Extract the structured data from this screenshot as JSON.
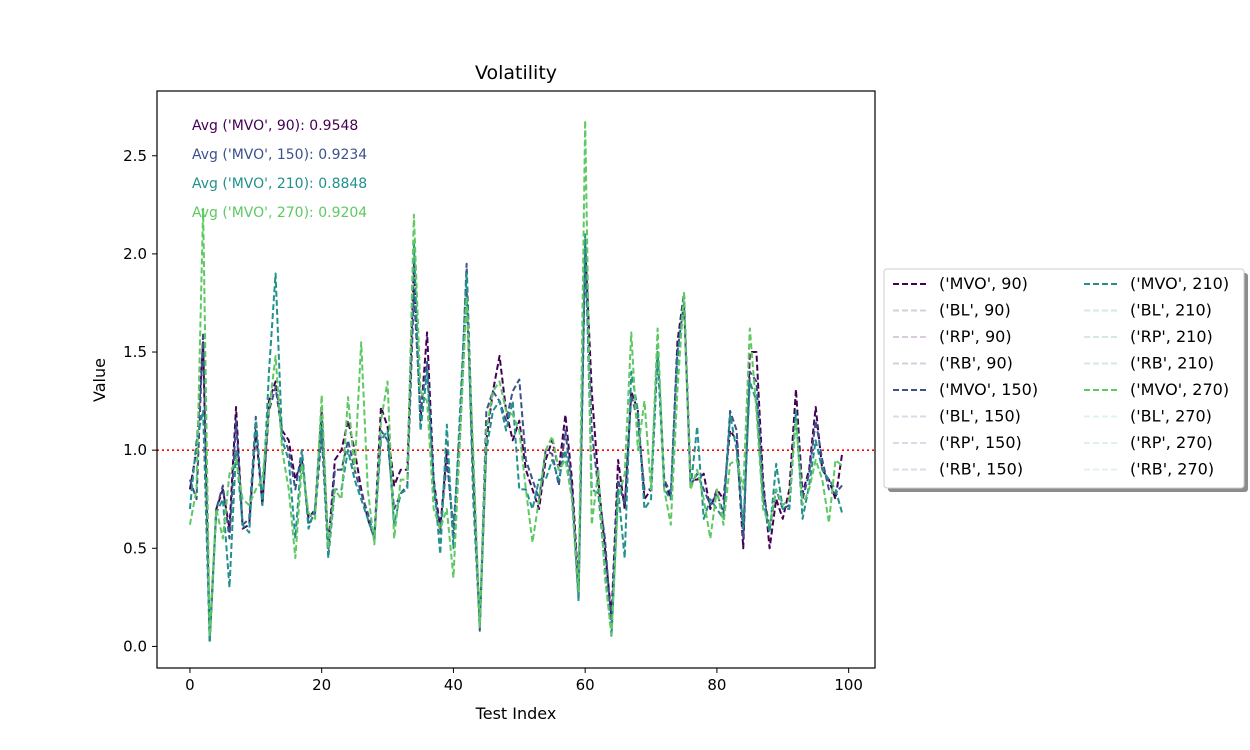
{
  "chart_data": {
    "type": "line",
    "title": "Volatility",
    "xlabel": "Test Index",
    "ylabel": "Value",
    "xlim": [
      -5,
      104
    ],
    "ylim": [
      -0.11,
      2.83
    ],
    "xticks": [
      0,
      20,
      40,
      60,
      80,
      100
    ],
    "yticks": [
      0.0,
      0.5,
      1.0,
      1.5,
      2.0,
      2.5
    ],
    "grid": false,
    "reference_line": {
      "y": 1.0,
      "color": "#ff0000",
      "style": "dotted"
    },
    "annotations": [
      {
        "text": "Avg ('MVO', 90): 0.9548",
        "color": "#440154"
      },
      {
        "text": "Avg ('MVO', 150): 0.9234",
        "color": "#3b528b"
      },
      {
        "text": "Avg ('MVO', 210): 0.8848",
        "color": "#21918c"
      },
      {
        "text": "Avg ('MVO', 270): 0.9204",
        "color": "#5ec962"
      }
    ],
    "legend": {
      "placement": "right, outside the plot",
      "columns": 2,
      "entries": [
        {
          "label": "('MVO', 90)",
          "color": "#440154",
          "faded": false
        },
        {
          "label": "('BL', 90)",
          "color": "#440154",
          "faded": true
        },
        {
          "label": "('RP', 90)",
          "color": "#440154",
          "faded": true
        },
        {
          "label": "('RB', 90)",
          "color": "#440154",
          "faded": true
        },
        {
          "label": "('MVO', 150)",
          "color": "#3b528b",
          "faded": false
        },
        {
          "label": "('BL', 150)",
          "color": "#3b528b",
          "faded": true
        },
        {
          "label": "('RP', 150)",
          "color": "#3b528b",
          "faded": true
        },
        {
          "label": "('RB', 150)",
          "color": "#3b528b",
          "faded": true
        },
        {
          "label": "('MVO', 210)",
          "color": "#21918c",
          "faded": false
        },
        {
          "label": "('BL', 210)",
          "color": "#21918c",
          "faded": true
        },
        {
          "label": "('RP', 210)",
          "color": "#21918c",
          "faded": true
        },
        {
          "label": "('RB', 210)",
          "color": "#21918c",
          "faded": true
        },
        {
          "label": "('MVO', 270)",
          "color": "#5ec962",
          "faded": false
        },
        {
          "label": "('BL', 270)",
          "color": "#5ec962",
          "faded": true
        },
        {
          "label": "('RP', 270)",
          "color": "#5ec962",
          "faded": true
        },
        {
          "label": "('RB', 270)",
          "color": "#5ec962",
          "faded": true
        }
      ]
    },
    "x": [
      0,
      1,
      2,
      3,
      4,
      5,
      6,
      7,
      8,
      9,
      10,
      11,
      12,
      13,
      14,
      15,
      16,
      17,
      18,
      19,
      20,
      21,
      22,
      23,
      24,
      25,
      26,
      27,
      28,
      29,
      30,
      31,
      32,
      33,
      34,
      35,
      36,
      37,
      38,
      39,
      40,
      41,
      42,
      43,
      44,
      45,
      46,
      47,
      48,
      49,
      50,
      51,
      52,
      53,
      54,
      55,
      56,
      57,
      58,
      59,
      60,
      61,
      62,
      63,
      64,
      65,
      66,
      67,
      68,
      69,
      70,
      71,
      72,
      73,
      74,
      75,
      76,
      77,
      78,
      79,
      80,
      81,
      82,
      83,
      84,
      85,
      86,
      87,
      88,
      89,
      90,
      91,
      92,
      93,
      94,
      95,
      96,
      97,
      98,
      99
    ],
    "series": [
      {
        "name": "('MVO', 90)",
        "color": "#440154",
        "values": [
          0.8,
          1.0,
          1.55,
          0.03,
          0.7,
          0.8,
          0.6,
          1.22,
          0.6,
          0.62,
          1.1,
          0.72,
          1.25,
          1.35,
          1.1,
          1.05,
          0.85,
          0.95,
          0.65,
          0.7,
          1.2,
          0.5,
          0.95,
          1.0,
          1.15,
          1.0,
          0.8,
          0.65,
          0.55,
          1.22,
          1.12,
          0.82,
          0.9,
          0.9,
          1.95,
          1.15,
          1.6,
          0.85,
          0.6,
          1.0,
          0.55,
          1.1,
          1.8,
          0.9,
          0.1,
          1.05,
          1.3,
          1.48,
          1.2,
          1.05,
          1.15,
          0.9,
          0.8,
          0.7,
          0.95,
          1.05,
          0.9,
          1.18,
          0.85,
          0.3,
          2.05,
          1.3,
          0.85,
          0.5,
          0.15,
          0.95,
          0.7,
          1.3,
          1.2,
          0.75,
          0.8,
          1.5,
          0.85,
          0.75,
          1.55,
          1.8,
          0.85,
          0.85,
          0.88,
          0.7,
          0.8,
          0.75,
          1.1,
          1.05,
          0.5,
          1.5,
          1.5,
          0.85,
          0.5,
          0.75,
          0.65,
          0.8,
          1.31,
          0.78,
          0.9,
          1.22,
          0.9,
          0.85,
          0.75,
          0.98
        ]
      },
      {
        "name": "('MVO', 150)",
        "color": "#3b528b",
        "values": [
          0.85,
          0.75,
          1.6,
          0.03,
          0.7,
          0.82,
          0.55,
          1.15,
          0.62,
          0.65,
          1.17,
          0.72,
          1.2,
          1.32,
          1.08,
          1.0,
          0.8,
          1.0,
          0.62,
          0.68,
          1.08,
          0.47,
          0.9,
          0.9,
          1.05,
          0.9,
          0.78,
          0.68,
          0.55,
          1.1,
          1.05,
          0.7,
          0.78,
          0.82,
          1.8,
          1.2,
          1.45,
          0.8,
          0.58,
          0.95,
          0.6,
          1.1,
          1.95,
          0.9,
          0.08,
          1.2,
          1.3,
          1.25,
          1.15,
          1.3,
          1.36,
          0.95,
          0.85,
          0.75,
          1.0,
          0.98,
          0.82,
          1.1,
          0.8,
          0.25,
          2.0,
          1.1,
          0.8,
          0.55,
          0.1,
          0.85,
          0.72,
          1.28,
          1.15,
          0.8,
          0.8,
          1.5,
          0.85,
          0.78,
          1.5,
          1.75,
          0.82,
          0.88,
          0.8,
          0.72,
          0.78,
          0.68,
          1.2,
          1.1,
          0.55,
          1.4,
          1.35,
          0.8,
          0.6,
          0.8,
          0.7,
          0.72,
          1.2,
          0.75,
          0.88,
          1.15,
          0.95,
          0.8,
          0.78,
          0.82
        ]
      },
      {
        "name": "('MVO', 210)",
        "color": "#21918c",
        "values": [
          0.7,
          1.05,
          1.2,
          0.02,
          0.68,
          0.75,
          0.3,
          1.0,
          0.62,
          0.58,
          1.15,
          0.72,
          1.4,
          1.9,
          1.05,
          0.95,
          0.55,
          1.0,
          0.6,
          0.7,
          1.15,
          0.45,
          0.8,
          0.8,
          1.0,
          0.85,
          0.75,
          0.65,
          0.55,
          1.05,
          1.1,
          0.62,
          0.78,
          0.8,
          2.05,
          1.1,
          1.4,
          0.85,
          0.47,
          1.13,
          0.5,
          1.2,
          1.9,
          0.75,
          0.1,
          1.0,
          1.2,
          1.25,
          1.1,
          1.25,
          0.8,
          0.8,
          0.7,
          0.85,
          0.85,
          0.95,
          0.85,
          1.0,
          0.75,
          0.23,
          2.1,
          0.8,
          0.78,
          0.4,
          0.05,
          0.8,
          0.45,
          1.4,
          1.2,
          0.7,
          0.75,
          1.5,
          0.8,
          0.75,
          1.45,
          1.8,
          0.8,
          1.12,
          0.65,
          0.75,
          0.7,
          0.65,
          1.18,
          1.0,
          0.6,
          1.35,
          1.25,
          0.75,
          0.58,
          0.93,
          0.7,
          0.7,
          1.2,
          0.65,
          0.82,
          1.05,
          0.9,
          0.85,
          0.8,
          0.68
        ]
      },
      {
        "name": "('MVO', 270)",
        "color": "#5ec962",
        "values": [
          0.62,
          0.8,
          2.23,
          0.05,
          0.7,
          0.55,
          0.88,
          0.95,
          0.75,
          0.72,
          0.8,
          0.85,
          1.2,
          1.48,
          1.0,
          0.8,
          0.45,
          0.93,
          0.68,
          0.65,
          1.28,
          0.5,
          0.8,
          0.75,
          1.27,
          0.9,
          1.55,
          0.8,
          0.52,
          1.15,
          1.35,
          0.55,
          0.85,
          0.85,
          2.2,
          1.3,
          1.25,
          0.7,
          0.6,
          0.7,
          0.35,
          1.05,
          1.78,
          1.0,
          0.1,
          1.1,
          1.3,
          1.35,
          1.2,
          1.18,
          1.1,
          0.8,
          0.53,
          0.75,
          1.0,
          1.07,
          0.9,
          0.95,
          0.75,
          0.28,
          2.68,
          0.62,
          0.9,
          0.35,
          0.06,
          0.75,
          0.88,
          1.6,
          1.0,
          1.25,
          0.8,
          1.62,
          0.8,
          0.62,
          1.3,
          1.8,
          0.8,
          0.9,
          0.75,
          0.55,
          0.8,
          0.62,
          0.93,
          0.95,
          0.8,
          1.62,
          1.2,
          0.7,
          0.62,
          0.8,
          0.72,
          0.75,
          1.15,
          0.72,
          0.8,
          0.95,
          0.85,
          0.63,
          0.95,
          0.92
        ]
      }
    ]
  }
}
